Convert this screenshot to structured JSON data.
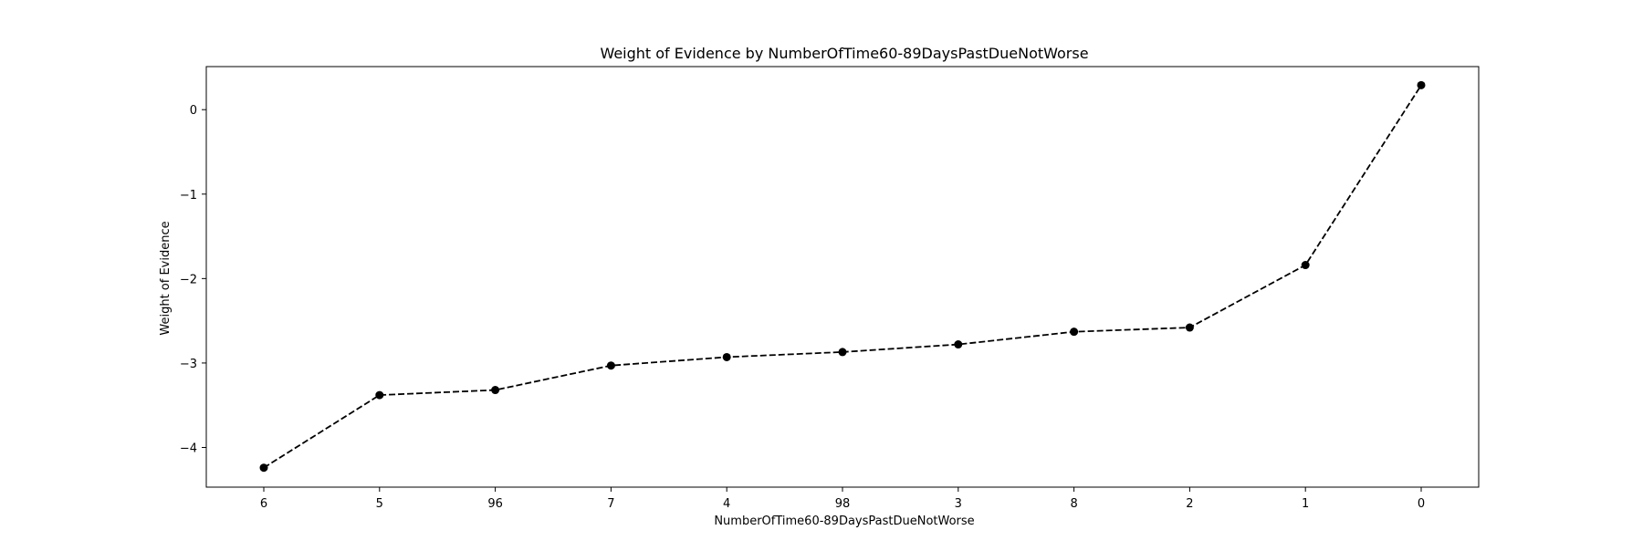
{
  "chart_data": {
    "type": "line",
    "title": "Weight of Evidence by NumberOfTime60-89DaysPastDueNotWorse",
    "xlabel": "NumberOfTime60-89DaysPastDueNotWorse",
    "ylabel": "Weight of Evidence",
    "categories": [
      "6",
      "5",
      "96",
      "7",
      "4",
      "98",
      "3",
      "8",
      "2",
      "1",
      "0"
    ],
    "series": [
      {
        "values": [
          -4.24,
          -3.38,
          -3.32,
          -3.03,
          -2.93,
          -2.87,
          -2.78,
          -2.63,
          -2.58,
          -1.84,
          0.29
        ]
      }
    ],
    "yticks": [
      0,
      -1,
      -2,
      -3,
      -4
    ],
    "ytick_labels": [
      "0",
      "−1",
      "−2",
      "−3",
      "−4"
    ],
    "ylim": [
      -4.47,
      0.51
    ],
    "line_style": "dashed",
    "marker": "circle",
    "line_color": "#000000",
    "grid": false,
    "legend": "none"
  }
}
